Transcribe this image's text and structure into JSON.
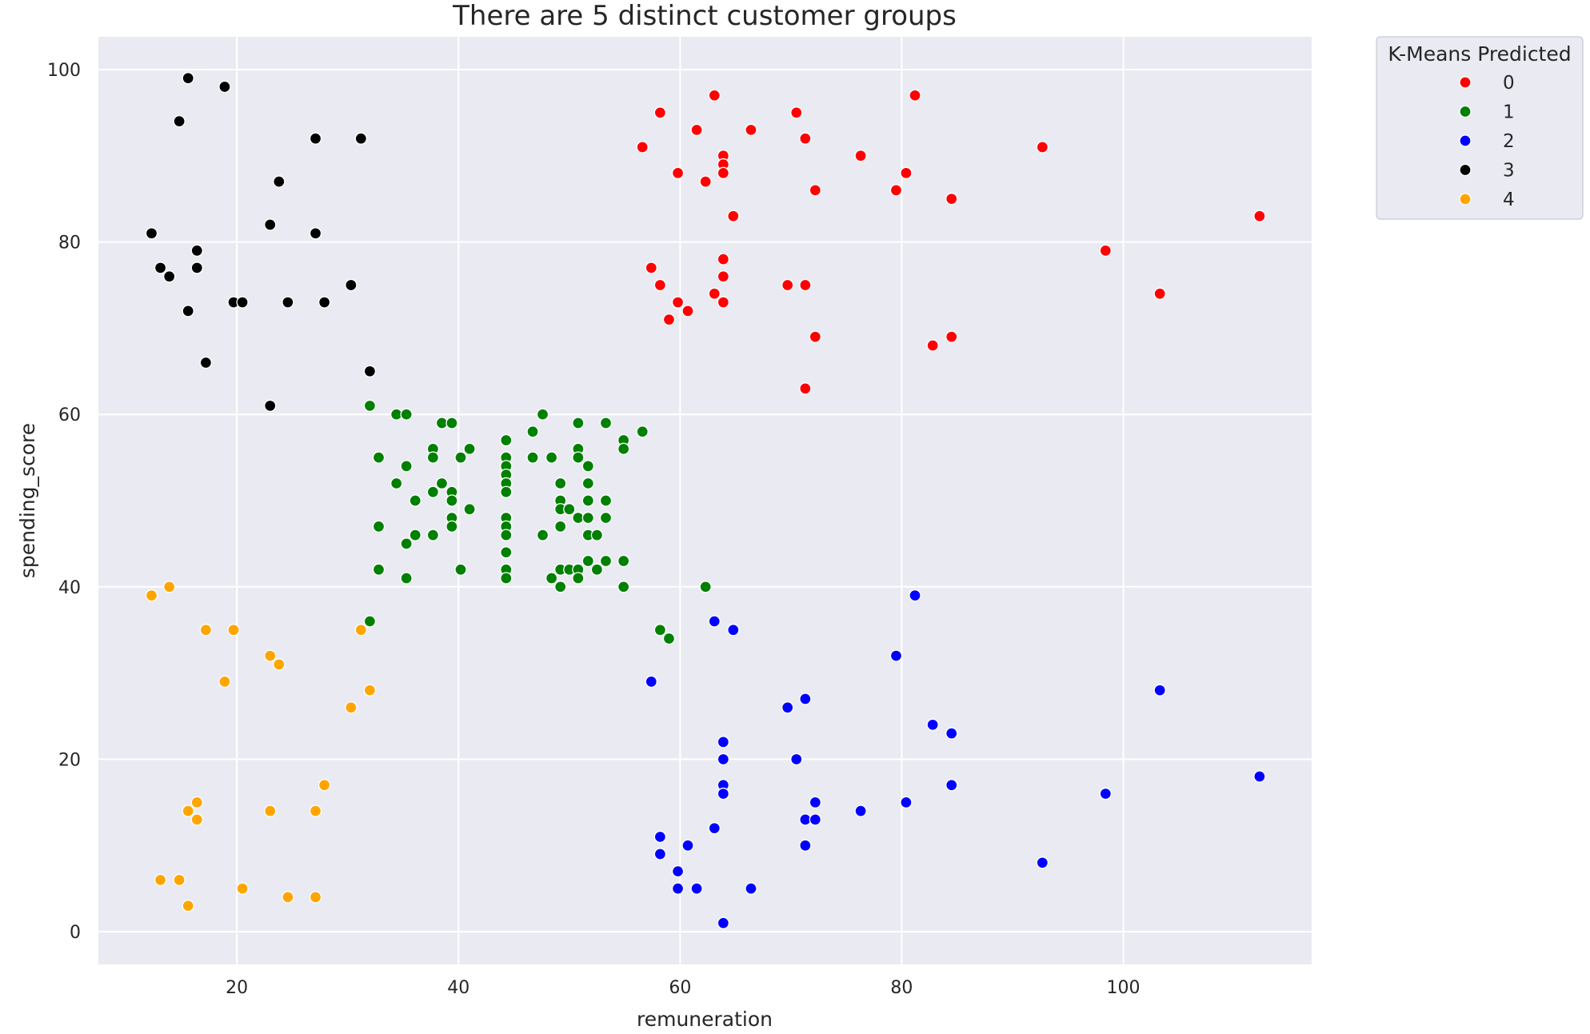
{
  "chart_data": {
    "type": "scatter",
    "title": "There are 5 distinct customer groups",
    "xlabel": "remuneration",
    "ylabel": "spending_score",
    "xlim": [
      7.5,
      117
    ],
    "ylim": [
      -3.8,
      103.8
    ],
    "xticks": [
      20,
      40,
      60,
      80,
      100
    ],
    "yticks": [
      0,
      20,
      40,
      60,
      80,
      100
    ],
    "grid": true,
    "background": "#EAEAF2",
    "legend": {
      "title": "K-Means Predicted",
      "placement": "outside-top-right"
    },
    "series": [
      {
        "name": "0",
        "color": "#FF0000",
        "points": [
          [
            56.6,
            91
          ],
          [
            58.2,
            95
          ],
          [
            59.8,
            88
          ],
          [
            61.5,
            93
          ],
          [
            62.3,
            87
          ],
          [
            63.1,
            97
          ],
          [
            63.9,
            90
          ],
          [
            63.9,
            89
          ],
          [
            63.9,
            88
          ],
          [
            64.8,
            83
          ],
          [
            66.4,
            93
          ],
          [
            70.5,
            95
          ],
          [
            71.3,
            92
          ],
          [
            72.2,
            86
          ],
          [
            76.3,
            90
          ],
          [
            79.5,
            86
          ],
          [
            80.4,
            88
          ],
          [
            81.2,
            97
          ],
          [
            84.5,
            85
          ],
          [
            92.7,
            91
          ],
          [
            57.4,
            77
          ],
          [
            58.2,
            75
          ],
          [
            59.0,
            71
          ],
          [
            59.8,
            73
          ],
          [
            60.7,
            72
          ],
          [
            63.1,
            74
          ],
          [
            63.9,
            78
          ],
          [
            63.9,
            76
          ],
          [
            63.9,
            73
          ],
          [
            69.7,
            75
          ],
          [
            71.3,
            75
          ],
          [
            72.2,
            69
          ],
          [
            71.3,
            63
          ],
          [
            82.8,
            68
          ],
          [
            84.5,
            69
          ],
          [
            98.4,
            79
          ],
          [
            103.3,
            74
          ],
          [
            112.3,
            83
          ]
        ]
      },
      {
        "name": "1",
        "color": "#008000",
        "points": [
          [
            32.0,
            61
          ],
          [
            32.0,
            36
          ],
          [
            32.8,
            55
          ],
          [
            32.8,
            47
          ],
          [
            32.8,
            42
          ],
          [
            34.4,
            60
          ],
          [
            34.4,
            52
          ],
          [
            35.3,
            60
          ],
          [
            35.3,
            54
          ],
          [
            35.3,
            45
          ],
          [
            35.3,
            41
          ],
          [
            36.1,
            50
          ],
          [
            36.1,
            46
          ],
          [
            37.7,
            56
          ],
          [
            37.7,
            55
          ],
          [
            37.7,
            51
          ],
          [
            37.7,
            46
          ],
          [
            38.5,
            59
          ],
          [
            38.5,
            52
          ],
          [
            39.4,
            59
          ],
          [
            39.4,
            51
          ],
          [
            39.4,
            50
          ],
          [
            39.4,
            48
          ],
          [
            39.4,
            47
          ],
          [
            40.2,
            55
          ],
          [
            40.2,
            42
          ],
          [
            41.0,
            56
          ],
          [
            41.0,
            49
          ],
          [
            44.3,
            57
          ],
          [
            44.3,
            55
          ],
          [
            44.3,
            54
          ],
          [
            44.3,
            53
          ],
          [
            44.3,
            52
          ],
          [
            44.3,
            51
          ],
          [
            44.3,
            48
          ],
          [
            44.3,
            47
          ],
          [
            44.3,
            46
          ],
          [
            44.3,
            44
          ],
          [
            44.3,
            42
          ],
          [
            44.3,
            41
          ],
          [
            46.7,
            58
          ],
          [
            46.7,
            55
          ],
          [
            47.6,
            60
          ],
          [
            47.6,
            46
          ],
          [
            48.4,
            55
          ],
          [
            48.4,
            41
          ],
          [
            49.2,
            52
          ],
          [
            49.2,
            50
          ],
          [
            49.2,
            49
          ],
          [
            49.2,
            47
          ],
          [
            49.2,
            42
          ],
          [
            49.2,
            40
          ],
          [
            50.0,
            49
          ],
          [
            50.0,
            42
          ],
          [
            50.8,
            59
          ],
          [
            50.8,
            56
          ],
          [
            50.8,
            55
          ],
          [
            50.8,
            48
          ],
          [
            50.8,
            42
          ],
          [
            50.8,
            41
          ],
          [
            51.7,
            54
          ],
          [
            51.7,
            52
          ],
          [
            51.7,
            50
          ],
          [
            51.7,
            48
          ],
          [
            51.7,
            46
          ],
          [
            51.7,
            43
          ],
          [
            52.5,
            46
          ],
          [
            52.5,
            42
          ],
          [
            53.3,
            59
          ],
          [
            53.3,
            50
          ],
          [
            53.3,
            48
          ],
          [
            53.3,
            43
          ],
          [
            54.9,
            57
          ],
          [
            54.9,
            56
          ],
          [
            54.9,
            43
          ],
          [
            54.9,
            40
          ],
          [
            56.6,
            58
          ],
          [
            58.2,
            35
          ],
          [
            59.0,
            34
          ],
          [
            62.3,
            40
          ]
        ]
      },
      {
        "name": "2",
        "color": "#0000FF",
        "points": [
          [
            57.4,
            29
          ],
          [
            58.2,
            11
          ],
          [
            58.2,
            9
          ],
          [
            59.8,
            7
          ],
          [
            59.8,
            5
          ],
          [
            60.7,
            10
          ],
          [
            61.5,
            5
          ],
          [
            63.1,
            36
          ],
          [
            63.1,
            12
          ],
          [
            63.9,
            22
          ],
          [
            63.9,
            20
          ],
          [
            63.9,
            17
          ],
          [
            63.9,
            16
          ],
          [
            63.9,
            1
          ],
          [
            64.8,
            35
          ],
          [
            66.4,
            5
          ],
          [
            69.7,
            26
          ],
          [
            70.5,
            20
          ],
          [
            71.3,
            27
          ],
          [
            71.3,
            13
          ],
          [
            71.3,
            10
          ],
          [
            72.2,
            15
          ],
          [
            72.2,
            13
          ],
          [
            76.3,
            14
          ],
          [
            79.5,
            32
          ],
          [
            80.4,
            15
          ],
          [
            81.2,
            39
          ],
          [
            82.8,
            24
          ],
          [
            84.5,
            23
          ],
          [
            84.5,
            17
          ],
          [
            92.7,
            8
          ],
          [
            98.4,
            16
          ],
          [
            103.3,
            28
          ],
          [
            112.3,
            18
          ]
        ]
      },
      {
        "name": "3",
        "color": "#000000",
        "points": [
          [
            12.3,
            81
          ],
          [
            13.1,
            77
          ],
          [
            13.9,
            76
          ],
          [
            14.8,
            94
          ],
          [
            15.6,
            99
          ],
          [
            15.6,
            72
          ],
          [
            16.4,
            79
          ],
          [
            16.4,
            77
          ],
          [
            17.2,
            66
          ],
          [
            18.9,
            98
          ],
          [
            19.7,
            73
          ],
          [
            20.5,
            73
          ],
          [
            23.0,
            82
          ],
          [
            23.0,
            61
          ],
          [
            23.8,
            87
          ],
          [
            24.6,
            73
          ],
          [
            27.1,
            92
          ],
          [
            27.1,
            81
          ],
          [
            27.9,
            73
          ],
          [
            30.3,
            75
          ],
          [
            31.2,
            92
          ],
          [
            32.0,
            65
          ]
        ]
      },
      {
        "name": "4",
        "color": "#FFA500",
        "points": [
          [
            12.3,
            39
          ],
          [
            13.1,
            6
          ],
          [
            13.9,
            40
          ],
          [
            14.8,
            6
          ],
          [
            15.6,
            14
          ],
          [
            15.6,
            3
          ],
          [
            16.4,
            15
          ],
          [
            16.4,
            13
          ],
          [
            17.2,
            35
          ],
          [
            18.9,
            29
          ],
          [
            19.7,
            35
          ],
          [
            20.5,
            5
          ],
          [
            23.0,
            32
          ],
          [
            23.0,
            14
          ],
          [
            23.8,
            31
          ],
          [
            24.6,
            4
          ],
          [
            27.1,
            14
          ],
          [
            27.1,
            4
          ],
          [
            27.9,
            17
          ],
          [
            30.3,
            26
          ],
          [
            31.2,
            35
          ],
          [
            32.0,
            28
          ]
        ]
      }
    ]
  }
}
